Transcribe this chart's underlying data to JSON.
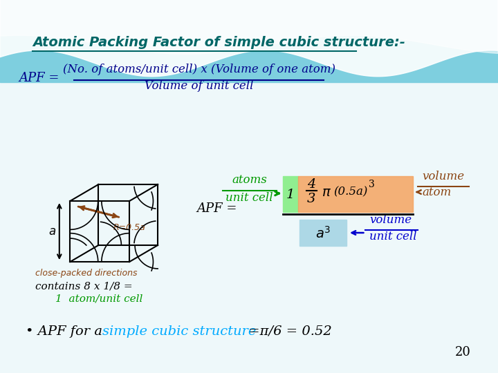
{
  "title": "Atomic Packing Factor of simple cubic structure:-",
  "title_color": "#006666",
  "title_fontsize": 14,
  "apf_label": "APF = ",
  "apf_label_color": "#00008B",
  "formula_numerator": "(No. of atoms/unit cell) x (Volume of one atom)",
  "formula_denominator": "Volume of unit cell",
  "formula_color": "#00008B",
  "atoms_label": "atoms",
  "unit_cell_label": "unit cell",
  "atoms_color": "#009900",
  "apf_eq": "APF = ",
  "numerator_box_color": "#F4A460",
  "green_box_color": "#90EE90",
  "blue_box_color": "#ADD8E6",
  "brown_color": "#8B4513",
  "blue_color": "#0000CD",
  "volume_atom_label": "volume",
  "atom_label": "atom",
  "volume_unit_cell": "volume",
  "unit_cell_label2": "unit cell",
  "close_packed": "close-packed directions",
  "contains": "contains 8 x 1/8 =",
  "one_atom": "1  atom/unit cell",
  "one_atom_color": "#009900",
  "bullet_text1": "• APF for a ",
  "bullet_text2": "simple cubic structure",
  "bullet_text2_color": "#00AAFF",
  "bullet_text3": " =π/6 = 0.52",
  "bullet_color": "#000000",
  "page_num": "20",
  "page_num_color": "#000000"
}
